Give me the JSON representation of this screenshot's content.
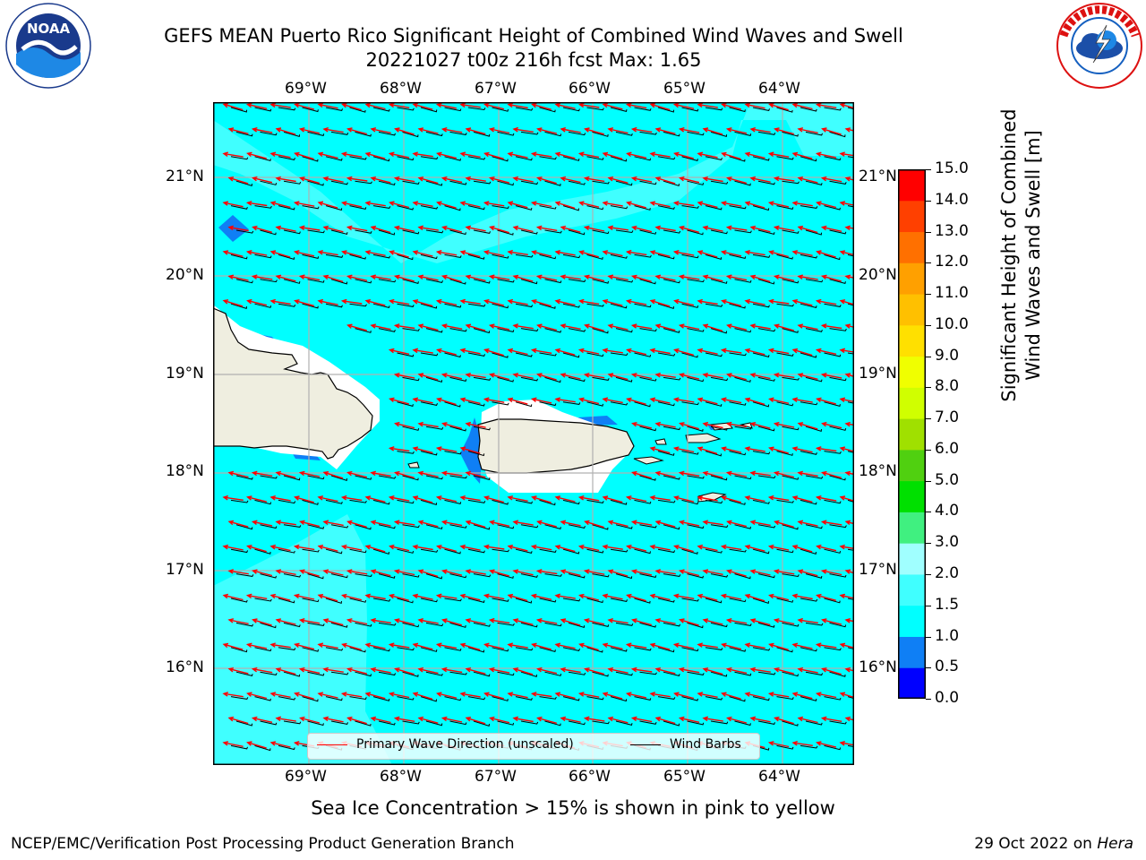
{
  "header": {
    "title_line1": "GEFS MEAN Puerto Rico Significant Height of Combined Wind Waves and Swell",
    "title_line2": "20221027 t00z 216h fcst   Max: 1.65"
  },
  "logos": {
    "left": {
      "name": "NOAA",
      "text": "NOAA",
      "ring_text": "NATIONAL OCEANIC AND ATMOSPHERIC ADMINISTRATION · U.S. DEPARTMENT OF COMMERCE"
    },
    "right": {
      "name": "National Weather Service",
      "ring_text": "NATIONAL WEATHER SERVICE"
    }
  },
  "map": {
    "lon_labels": [
      "69°W",
      "68°W",
      "67°W",
      "66°W",
      "65°W",
      "64°W"
    ],
    "lat_labels": [
      "21°N",
      "20°N",
      "19°N",
      "18°N",
      "17°N",
      "16°N"
    ],
    "colors": {
      "sea_main": "#00ffff",
      "sea_light": "#40ffff",
      "sea_dark": "#0f7ff5",
      "land": "#efeee0",
      "nodata": "#ffffff",
      "wave_arrow": "#ff0000",
      "barb": "#000000",
      "grid": "#b0b0b0"
    },
    "wave_direction": "from east-southeast",
    "legend": {
      "wave": "Primary Wave Direction (unscaled)",
      "barb": "Wind Barbs"
    }
  },
  "colorbar": {
    "ticks": [
      "15.0",
      "14.0",
      "13.0",
      "12.0",
      "11.0",
      "10.0",
      "9.0",
      "8.0",
      "7.0",
      "6.0",
      "5.0",
      "4.0",
      "3.0",
      "2.0",
      "1.5",
      "1.0",
      "0.5",
      "0.0"
    ],
    "colors_bottom_to_top": [
      "#0000ff",
      "#0f7ff5",
      "#00ffff",
      "#40ffff",
      "#a0ffff",
      "#40f080",
      "#00e000",
      "#50d010",
      "#a0e000",
      "#d0ff00",
      "#f0ff00",
      "#ffe000",
      "#ffc000",
      "#ffa000",
      "#ff7000",
      "#ff4000",
      "#ff0000"
    ],
    "label_line1": "Significant Height of Combined",
    "label_line2": "Wind Waves and Swell [m]"
  },
  "caption": "Sea Ice Concentration > 15% is shown in pink to yellow",
  "footer": {
    "left": "NCEP/EMC/Verification Post Processing Product Generation Branch",
    "right_prefix": "29 Oct 2022 on ",
    "right_host": "Hera"
  }
}
